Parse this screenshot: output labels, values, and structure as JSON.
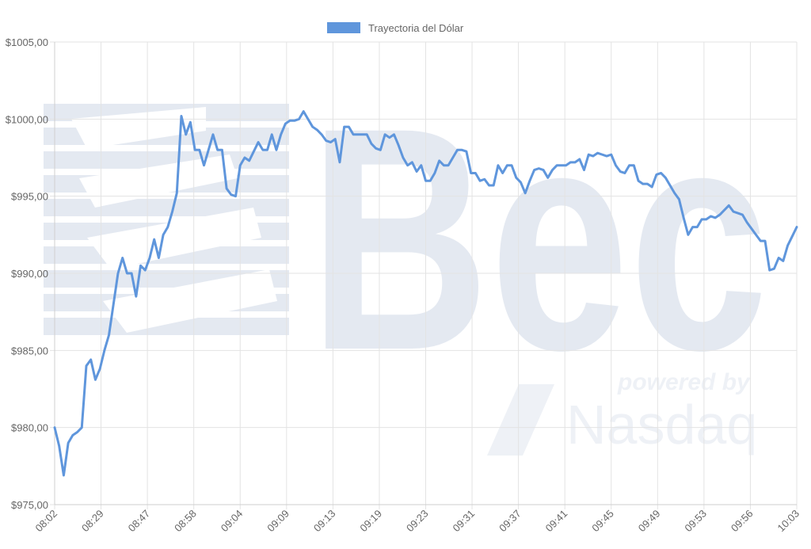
{
  "chart_data": {
    "type": "line",
    "title": "",
    "xlabel": "",
    "ylabel": "",
    "ylim": [
      975,
      1005
    ],
    "y_ticks": [
      "$975,00",
      "$980,00",
      "$985,00",
      "$990,00",
      "$995,00",
      "$1000,00",
      "$1005,00"
    ],
    "x_ticks": [
      "08:02",
      "08:29",
      "08:47",
      "08:58",
      "09:04",
      "09:09",
      "09:13",
      "09:19",
      "09:23",
      "09:31",
      "09:37",
      "09:41",
      "09:45",
      "09:49",
      "09:53",
      "09:56",
      "10:03"
    ],
    "grid": true,
    "legend": "top-center",
    "series": [
      {
        "name": "Trayectoria del Dólar",
        "color": "#5f96dc",
        "values": [
          980.0,
          978.8,
          976.9,
          979.0,
          979.5,
          979.7,
          980.0,
          984.0,
          984.4,
          983.1,
          983.8,
          985.0,
          986.0,
          988.0,
          990.0,
          991.0,
          990.0,
          990.0,
          988.5,
          990.5,
          990.2,
          991.0,
          992.2,
          991.0,
          992.5,
          993.0,
          994.0,
          995.2,
          1000.2,
          999.0,
          999.8,
          998.0,
          998.0,
          997.0,
          998.0,
          999.0,
          998.0,
          998.0,
          995.5,
          995.1,
          995.0,
          997.0,
          997.5,
          997.3,
          997.9,
          998.5,
          998.0,
          998.0,
          999.0,
          998.0,
          999.0,
          999.7,
          999.9,
          999.9,
          1000.0,
          1000.5,
          1000.0,
          999.5,
          999.3,
          999.0,
          998.6,
          998.5,
          998.7,
          997.2,
          999.5,
          999.5,
          999.0,
          999.0,
          999.0,
          999.0,
          998.4,
          998.1,
          998.0,
          999.0,
          998.8,
          999.0,
          998.3,
          997.5,
          997.0,
          997.2,
          996.6,
          997.0,
          996.0,
          996.0,
          996.5,
          997.3,
          997.0,
          997.0,
          997.5,
          998.0,
          998.0,
          997.9,
          996.5,
          996.5,
          996.0,
          996.1,
          995.7,
          995.7,
          997.0,
          996.5,
          997.0,
          997.0,
          996.2,
          995.9,
          995.2,
          996.0,
          996.7,
          996.8,
          996.7,
          996.2,
          996.7,
          997.0,
          997.0,
          997.0,
          997.2,
          997.2,
          997.4,
          996.7,
          997.7,
          997.6,
          997.8,
          997.7,
          997.6,
          997.7,
          997.0,
          996.6,
          996.5,
          997.0,
          997.0,
          996.0,
          995.8,
          995.8,
          995.6,
          996.4,
          996.5,
          996.2,
          995.7,
          995.2,
          994.8,
          993.6,
          992.5,
          993.0,
          993.0,
          993.5,
          993.5,
          993.7,
          993.6,
          993.8,
          994.1,
          994.4,
          994.0,
          993.9,
          993.8,
          993.3,
          992.9,
          992.5,
          992.1,
          992.1,
          990.2,
          990.3,
          991.0,
          990.8,
          991.8,
          992.4,
          993.0
        ]
      }
    ]
  },
  "watermark": {
    "brand_text": "Bec",
    "tagline_top": "powered by",
    "tagline_bottom": "Nasdaq"
  }
}
